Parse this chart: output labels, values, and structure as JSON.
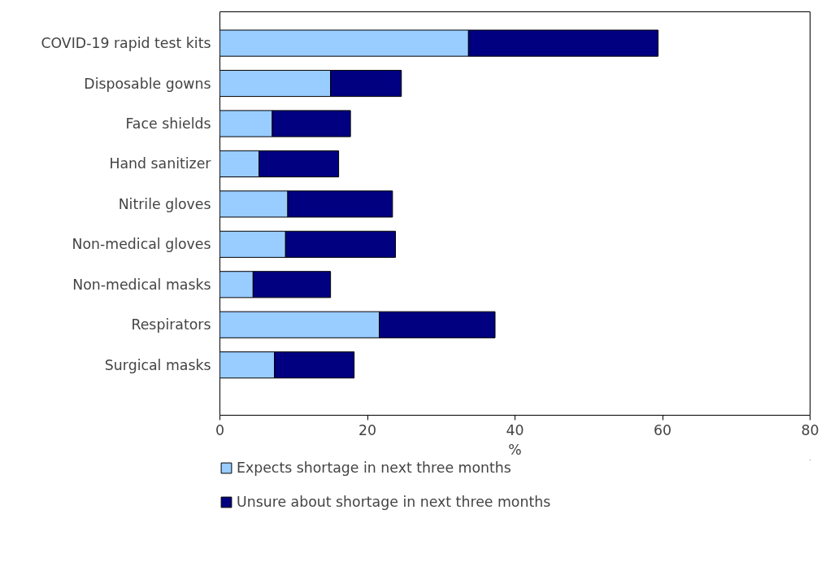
{
  "chart_data": {
    "type": "bar",
    "orientation": "horizontal",
    "stacked": true,
    "xlabel": "%",
    "categories": [
      "COVID-19 rapid test kits",
      "Disposable gowns",
      "Face shields",
      "Hand sanitizer",
      "Nitrile gloves",
      "Non-medical gloves",
      "Non-medical masks",
      "Respirators",
      "Surgical masks"
    ],
    "series": [
      {
        "name": "Expects shortage in next three months",
        "color": "#99ccff",
        "values": [
          33.7,
          15.0,
          7.1,
          5.3,
          9.2,
          8.9,
          4.5,
          21.6,
          7.4
        ]
      },
      {
        "name": "Unsure about shortage in next three months",
        "color": "#000080",
        "values": [
          25.7,
          9.6,
          10.6,
          10.8,
          14.2,
          14.9,
          10.5,
          15.7,
          10.8
        ]
      }
    ],
    "xlim": [
      0,
      80
    ],
    "xticks": [
      0,
      20,
      40,
      60,
      80
    ],
    "grid": false,
    "legend": "bottom"
  }
}
